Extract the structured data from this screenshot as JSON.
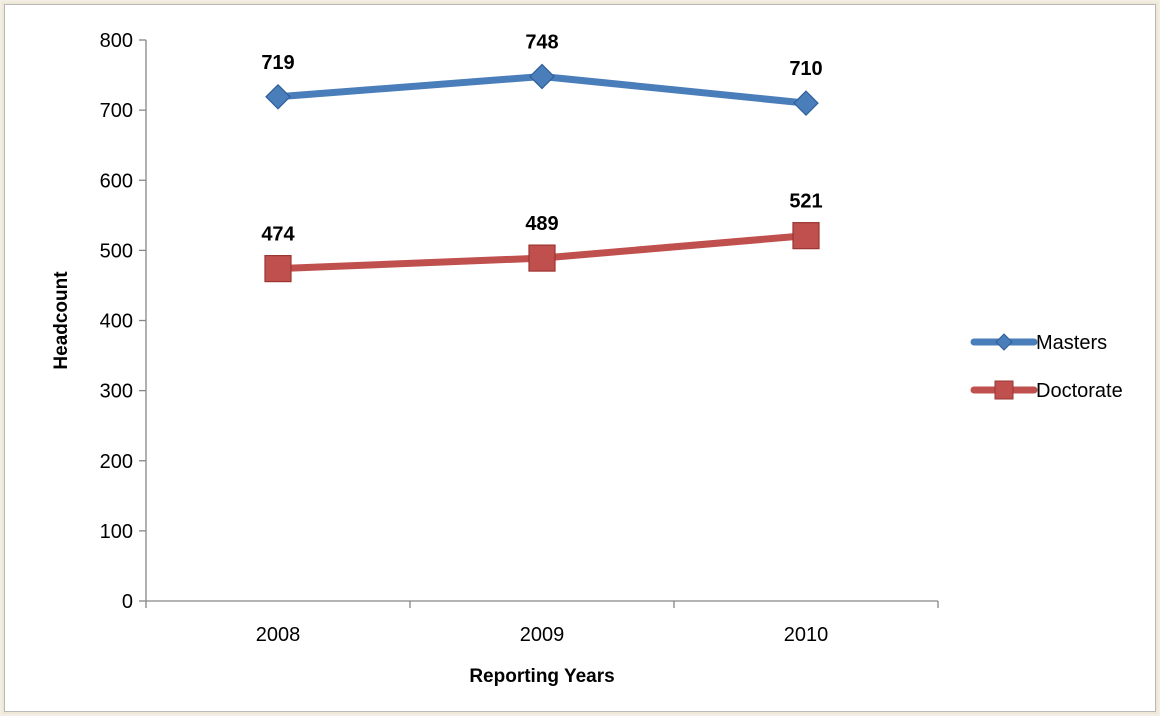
{
  "chart_data": {
    "type": "line",
    "title": "",
    "xlabel": "Reporting Years",
    "ylabel": "Headcount",
    "categories": [
      "2008",
      "2009",
      "2010"
    ],
    "ylim": [
      0,
      800
    ],
    "yticks": [
      0,
      100,
      200,
      300,
      400,
      500,
      600,
      700,
      800
    ],
    "grid": false,
    "legend": "right",
    "series": [
      {
        "name": "Masters",
        "values": [
          719,
          748,
          710
        ],
        "marker": "diamond",
        "color": "#4a7ebb",
        "edge_color": "#2f5f9a"
      },
      {
        "name": "Doctorate",
        "values": [
          474,
          489,
          521
        ],
        "marker": "square",
        "color": "#c0504d",
        "edge_color": "#9a3532"
      }
    ]
  }
}
